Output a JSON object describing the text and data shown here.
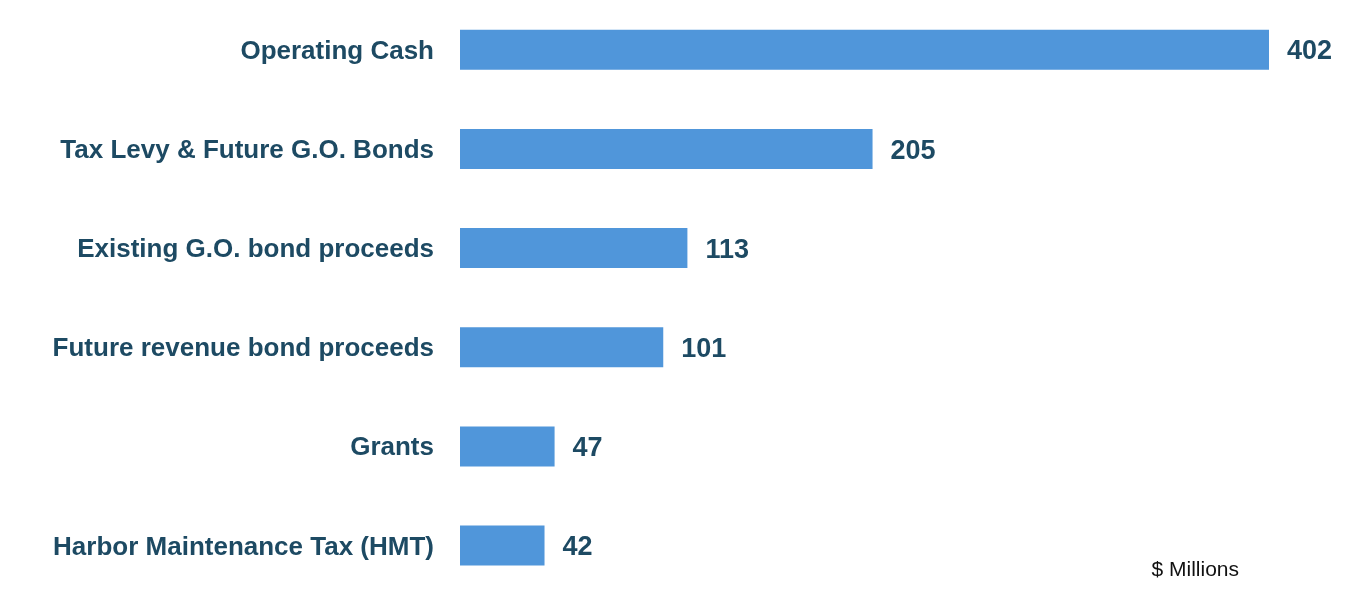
{
  "chart_data": {
    "type": "bar",
    "orientation": "horizontal",
    "categories": [
      "Operating Cash",
      "Tax Levy & Future G.O. Bonds",
      "Existing G.O. bond proceeds",
      "Future revenue bond proceeds",
      "Grants",
      "Harbor Maintenance Tax (HMT)"
    ],
    "values": [
      402,
      205,
      113,
      101,
      47,
      42
    ],
    "color": "#5096da",
    "data_labels": true,
    "annotations": [
      "$ Millions"
    ]
  }
}
